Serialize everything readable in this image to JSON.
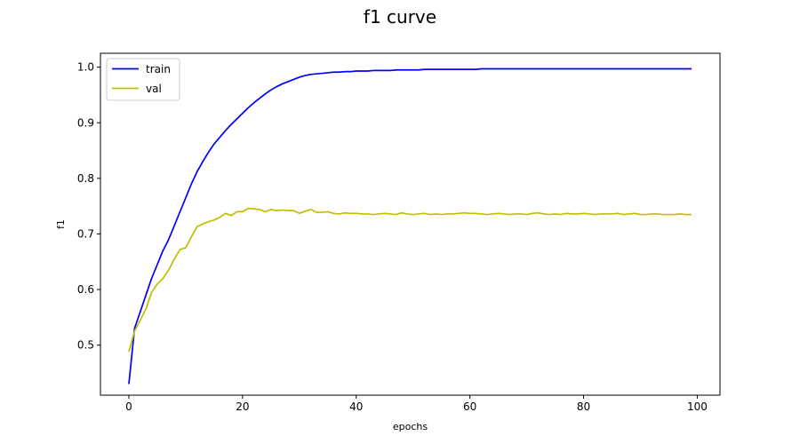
{
  "chart_data": {
    "type": "line",
    "title": "f1 curve",
    "xlabel": "epochs",
    "ylabel": "f1",
    "xlim": [
      -5,
      104
    ],
    "ylim": [
      0.41,
      1.025
    ],
    "xticks": [
      0,
      20,
      40,
      60,
      80,
      100
    ],
    "yticks": [
      0.5,
      0.6,
      0.7,
      0.8,
      0.9,
      1.0
    ],
    "grid": false,
    "legend_position": "upper-left",
    "series": [
      {
        "name": "train",
        "color": "#0000ff",
        "x": [
          0,
          1,
          2,
          3,
          4,
          5,
          6,
          7,
          8,
          9,
          10,
          11,
          12,
          13,
          14,
          15,
          16,
          17,
          18,
          19,
          20,
          21,
          22,
          23,
          24,
          25,
          26,
          27,
          28,
          29,
          30,
          31,
          32,
          33,
          34,
          35,
          36,
          37,
          38,
          39,
          40,
          41,
          42,
          43,
          44,
          45,
          46,
          47,
          48,
          49,
          50,
          51,
          52,
          53,
          54,
          55,
          56,
          57,
          58,
          59,
          60,
          61,
          62,
          63,
          64,
          65,
          66,
          67,
          68,
          69,
          70,
          71,
          72,
          73,
          74,
          75,
          76,
          77,
          78,
          79,
          80,
          81,
          82,
          83,
          84,
          85,
          86,
          87,
          88,
          89,
          90,
          91,
          92,
          93,
          94,
          95,
          96,
          97,
          98,
          99
        ],
        "y": [
          0.43,
          0.53,
          0.56,
          0.59,
          0.62,
          0.645,
          0.67,
          0.69,
          0.715,
          0.74,
          0.765,
          0.79,
          0.812,
          0.83,
          0.847,
          0.862,
          0.874,
          0.886,
          0.897,
          0.907,
          0.917,
          0.927,
          0.936,
          0.944,
          0.952,
          0.959,
          0.965,
          0.97,
          0.974,
          0.978,
          0.982,
          0.985,
          0.987,
          0.988,
          0.989,
          0.99,
          0.991,
          0.991,
          0.992,
          0.992,
          0.993,
          0.993,
          0.993,
          0.994,
          0.994,
          0.994,
          0.994,
          0.995,
          0.995,
          0.995,
          0.995,
          0.995,
          0.996,
          0.996,
          0.996,
          0.996,
          0.996,
          0.996,
          0.996,
          0.996,
          0.996,
          0.996,
          0.997,
          0.997,
          0.997,
          0.997,
          0.997,
          0.997,
          0.997,
          0.997,
          0.997,
          0.997,
          0.997,
          0.997,
          0.997,
          0.997,
          0.997,
          0.997,
          0.997,
          0.997,
          0.997,
          0.997,
          0.997,
          0.997,
          0.997,
          0.997,
          0.997,
          0.997,
          0.997,
          0.997,
          0.997,
          0.997,
          0.997,
          0.997,
          0.997,
          0.997,
          0.997,
          0.997,
          0.997,
          0.997
        ]
      },
      {
        "name": "val",
        "color": "#bfbf00",
        "x": [
          0,
          1,
          2,
          3,
          4,
          5,
          6,
          7,
          8,
          9,
          10,
          11,
          12,
          13,
          14,
          15,
          16,
          17,
          18,
          19,
          20,
          21,
          22,
          23,
          24,
          25,
          26,
          27,
          28,
          29,
          30,
          31,
          32,
          33,
          34,
          35,
          36,
          37,
          38,
          39,
          40,
          41,
          42,
          43,
          44,
          45,
          46,
          47,
          48,
          49,
          50,
          51,
          52,
          53,
          54,
          55,
          56,
          57,
          58,
          59,
          60,
          61,
          62,
          63,
          64,
          65,
          66,
          67,
          68,
          69,
          70,
          71,
          72,
          73,
          74,
          75,
          76,
          77,
          78,
          79,
          80,
          81,
          82,
          83,
          84,
          85,
          86,
          87,
          88,
          89,
          90,
          91,
          92,
          93,
          94,
          95,
          96,
          97,
          98,
          99
        ],
        "y": [
          0.488,
          0.525,
          0.545,
          0.565,
          0.595,
          0.61,
          0.62,
          0.635,
          0.655,
          0.672,
          0.675,
          0.695,
          0.713,
          0.718,
          0.722,
          0.725,
          0.73,
          0.737,
          0.733,
          0.74,
          0.74,
          0.746,
          0.745,
          0.744,
          0.74,
          0.744,
          0.742,
          0.743,
          0.742,
          0.742,
          0.737,
          0.741,
          0.744,
          0.739,
          0.739,
          0.74,
          0.737,
          0.736,
          0.738,
          0.737,
          0.737,
          0.736,
          0.736,
          0.735,
          0.736,
          0.737,
          0.736,
          0.735,
          0.738,
          0.736,
          0.735,
          0.736,
          0.737,
          0.735,
          0.736,
          0.735,
          0.736,
          0.736,
          0.737,
          0.738,
          0.737,
          0.737,
          0.736,
          0.735,
          0.736,
          0.737,
          0.736,
          0.735,
          0.736,
          0.736,
          0.735,
          0.737,
          0.738,
          0.736,
          0.735,
          0.736,
          0.735,
          0.737,
          0.736,
          0.736,
          0.737,
          0.736,
          0.735,
          0.736,
          0.736,
          0.736,
          0.737,
          0.735,
          0.736,
          0.737,
          0.735,
          0.735,
          0.736,
          0.736,
          0.735,
          0.735,
          0.735,
          0.736,
          0.735,
          0.735
        ]
      }
    ]
  }
}
